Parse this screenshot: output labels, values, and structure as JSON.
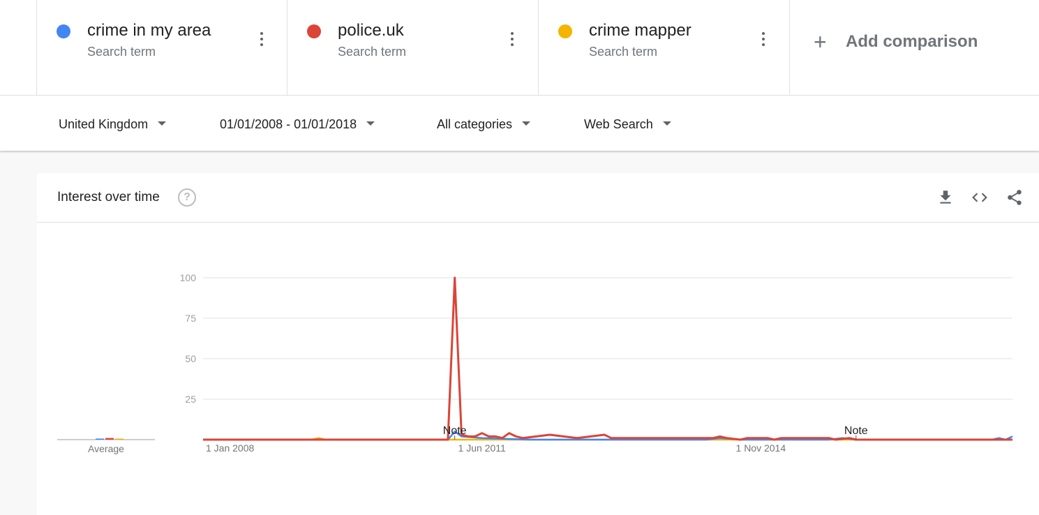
{
  "terms": [
    {
      "name": "crime in my area",
      "subtitle": "Search term",
      "color": "#4285f4"
    },
    {
      "name": "police.uk",
      "subtitle": "Search term",
      "color": "#db4437"
    },
    {
      "name": "crime mapper",
      "subtitle": "Search term",
      "color": "#f4b400"
    }
  ],
  "add_comparison": {
    "icon": "plus-icon",
    "label": "Add comparison"
  },
  "filters": {
    "region": "United Kingdom",
    "date_range": "01/01/2008 - 01/01/2018",
    "category": "All categories",
    "search_type": "Web Search"
  },
  "card": {
    "title": "Interest over time",
    "help_glyph": "?",
    "icons": [
      "download-icon",
      "embed-code-icon",
      "share-icon"
    ]
  },
  "chart_data": {
    "type": "line",
    "title": "Interest over time",
    "x_range": [
      "2008-01",
      "2017-12"
    ],
    "ylim": [
      0,
      100
    ],
    "y_ticks": [
      25,
      50,
      75,
      100
    ],
    "x_ticks": [
      "1 Jan 2008",
      "1 Jun 2011",
      "1 Nov 2014"
    ],
    "grid": true,
    "average_label": "Average",
    "averages": [
      0,
      1,
      0
    ],
    "notes": [
      {
        "x": "2011-02",
        "label": "Note"
      },
      {
        "x": "2016-01",
        "label": "Note"
      }
    ],
    "series": [
      {
        "name": "crime in my area",
        "color": "#4285f4",
        "points": [
          [
            "2008-01",
            0
          ],
          [
            "2011-01",
            0
          ],
          [
            "2011-02",
            5
          ],
          [
            "2011-03",
            2
          ],
          [
            "2011-06",
            1
          ],
          [
            "2012-01",
            0
          ],
          [
            "2013-06",
            0
          ],
          [
            "2014-03",
            0
          ],
          [
            "2014-05",
            1
          ],
          [
            "2014-08",
            0
          ],
          [
            "2015-09",
            0
          ],
          [
            "2015-11",
            1
          ],
          [
            "2016-01",
            0
          ],
          [
            "2017-09",
            0
          ],
          [
            "2017-10",
            1
          ],
          [
            "2017-11",
            0
          ],
          [
            "2017-12",
            2
          ]
        ]
      },
      {
        "name": "police.uk",
        "color": "#db4437",
        "points": [
          [
            "2008-01",
            0
          ],
          [
            "2011-01",
            0
          ],
          [
            "2011-02",
            100
          ],
          [
            "2011-03",
            3
          ],
          [
            "2011-04",
            2
          ],
          [
            "2011-05",
            2
          ],
          [
            "2011-06",
            4
          ],
          [
            "2011-07",
            2
          ],
          [
            "2011-08",
            2
          ],
          [
            "2011-09",
            1
          ],
          [
            "2011-10",
            4
          ],
          [
            "2011-11",
            2
          ],
          [
            "2011-12",
            1
          ],
          [
            "2012-02",
            2
          ],
          [
            "2012-04",
            3
          ],
          [
            "2012-06",
            2
          ],
          [
            "2012-08",
            1
          ],
          [
            "2012-10",
            2
          ],
          [
            "2012-12",
            3
          ],
          [
            "2013-01",
            1
          ],
          [
            "2014-04",
            1
          ],
          [
            "2014-05",
            2
          ],
          [
            "2014-06",
            1
          ],
          [
            "2014-08",
            0
          ],
          [
            "2014-09",
            1
          ],
          [
            "2014-12",
            1
          ],
          [
            "2015-01",
            0
          ],
          [
            "2015-02",
            1
          ],
          [
            "2015-09",
            1
          ],
          [
            "2015-10",
            0
          ],
          [
            "2015-12",
            1
          ],
          [
            "2016-01",
            0
          ],
          [
            "2017-12",
            0
          ]
        ]
      },
      {
        "name": "crime mapper",
        "color": "#f4b400",
        "points": [
          [
            "2008-01",
            0
          ],
          [
            "2009-05",
            0
          ],
          [
            "2009-06",
            1
          ],
          [
            "2009-07",
            0
          ],
          [
            "2017-12",
            0
          ]
        ]
      }
    ]
  }
}
